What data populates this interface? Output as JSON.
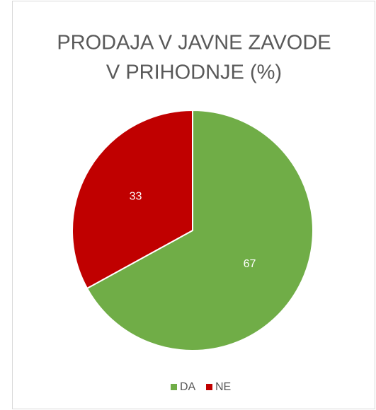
{
  "chart_data": {
    "type": "pie",
    "title": [
      "PRODAJA V JAVNE ZAVODE",
      "V PRIHODNJE (%)"
    ],
    "categories": [
      "DA",
      "NE"
    ],
    "values": [
      67,
      33
    ],
    "colors": [
      "#70ad47",
      "#c00000"
    ],
    "legend": "bottom"
  }
}
